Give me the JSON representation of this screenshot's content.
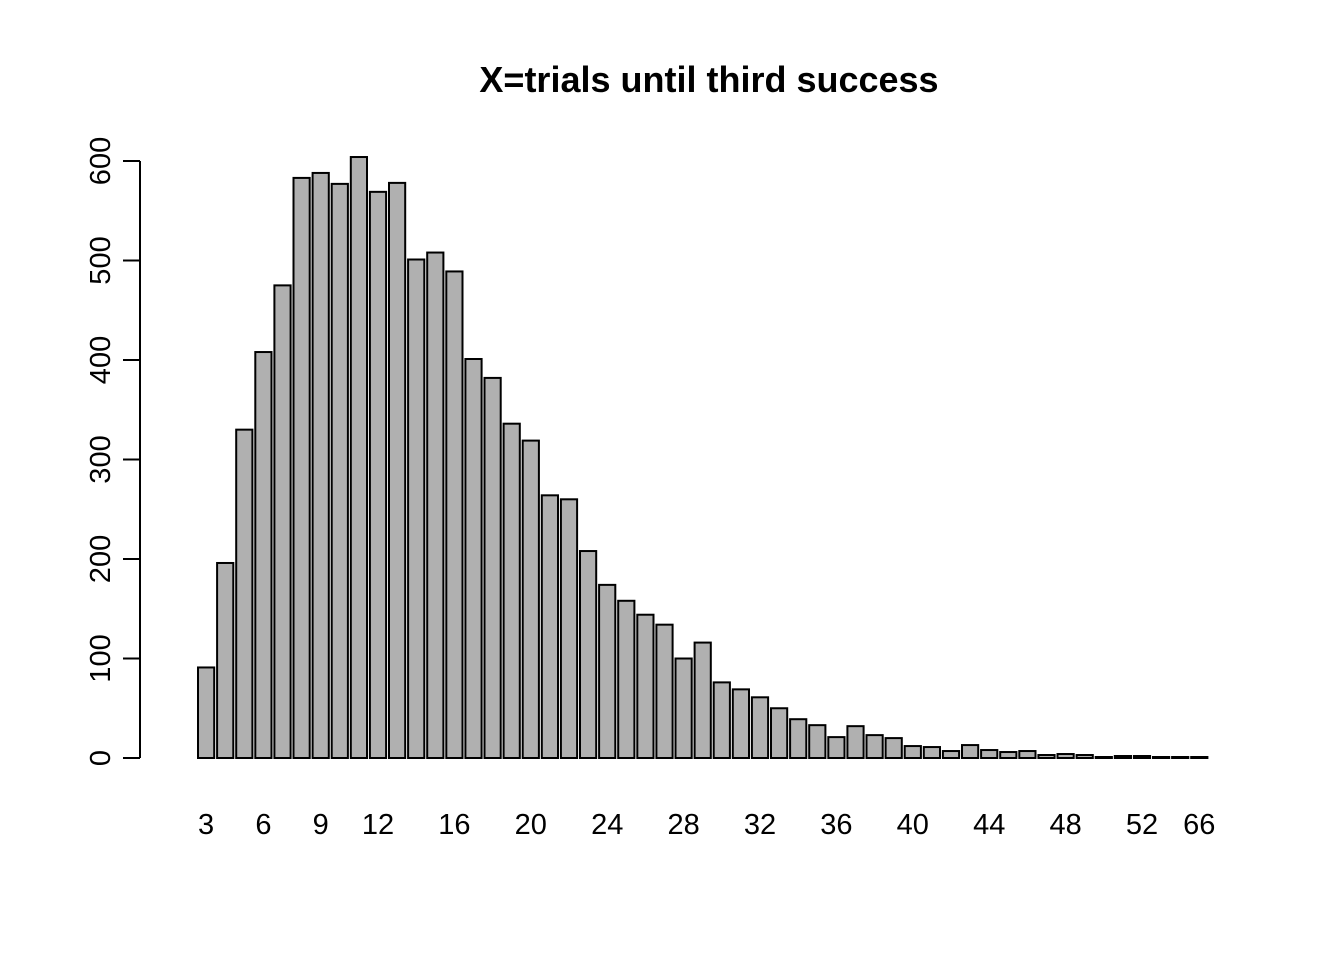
{
  "chart_data": {
    "type": "bar",
    "title": "X=trials until third success",
    "xlabel": "",
    "ylabel": "",
    "ylim": [
      0,
      600
    ],
    "yticks": [
      0,
      100,
      200,
      300,
      400,
      500,
      600
    ],
    "categories": [
      "3",
      "4",
      "5",
      "6",
      "7",
      "8",
      "9",
      "10",
      "11",
      "12",
      "13",
      "14",
      "15",
      "16",
      "17",
      "18",
      "19",
      "20",
      "21",
      "22",
      "23",
      "24",
      "25",
      "26",
      "27",
      "28",
      "29",
      "30",
      "31",
      "32",
      "33",
      "34",
      "35",
      "36",
      "37",
      "38",
      "39",
      "40",
      "41",
      "42",
      "43",
      "44",
      "45",
      "46",
      "47",
      "48",
      "49",
      "50",
      "51",
      "52",
      "53",
      "54",
      "66"
    ],
    "visible_xtick_labels": [
      "3",
      "6",
      "9",
      "12",
      "16",
      "20",
      "24",
      "28",
      "32",
      "36",
      "40",
      "44",
      "48",
      "52",
      "66"
    ],
    "values": [
      91,
      196,
      330,
      408,
      475,
      583,
      588,
      577,
      604,
      569,
      578,
      501,
      508,
      489,
      401,
      382,
      336,
      319,
      264,
      260,
      208,
      174,
      158,
      144,
      134,
      100,
      116,
      76,
      69,
      61,
      50,
      39,
      33,
      21,
      32,
      23,
      20,
      12,
      11,
      7,
      13,
      8,
      6,
      7,
      3,
      4,
      3,
      1,
      2,
      2,
      1,
      1,
      1
    ],
    "bar_color": "#b0b0b0",
    "grid": false
  }
}
